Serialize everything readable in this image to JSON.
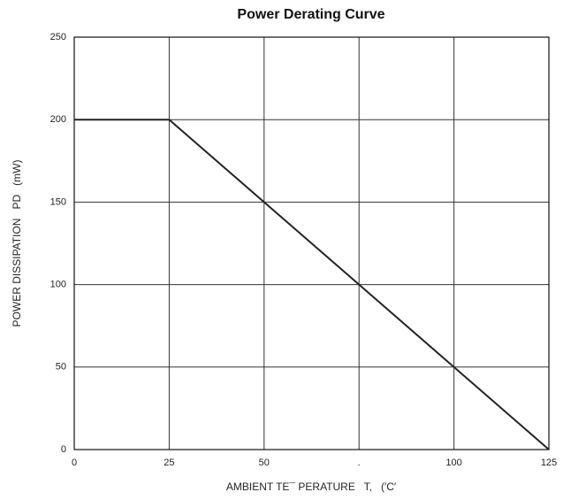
{
  "chart_data": {
    "type": "line",
    "title": "Power Derating Curve",
    "x_label": "AMBIENT TE¯ PERATURE   T,   (′C′",
    "y_label": "POWER DISSIPATION   PD   (mW)",
    "x": [
      0,
      25,
      125
    ],
    "series": [
      {
        "name": "Power Dissipation",
        "color": "#222222",
        "values": [
          200,
          200,
          0
        ]
      }
    ],
    "xlim": [
      0,
      125
    ],
    "xticks": [
      0,
      25,
      50,
      {
        "value": 75,
        "label": "."
      },
      100,
      125
    ],
    "ylim": [
      0,
      250
    ],
    "yticks": [
      0,
      50,
      100,
      150,
      200,
      250
    ],
    "grid": true
  }
}
